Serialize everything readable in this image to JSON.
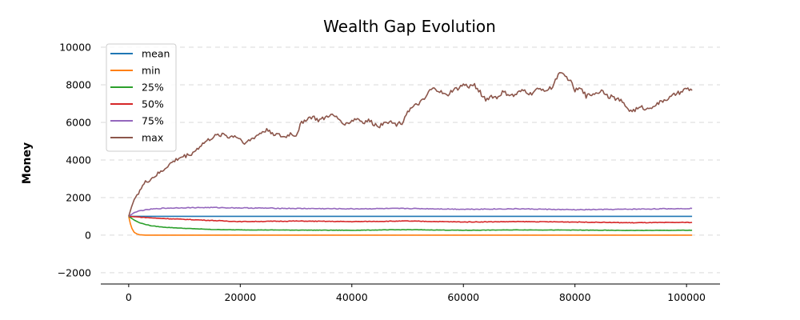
{
  "chart_data": {
    "type": "line",
    "title": "Wealth Gap Evolution",
    "xlabel": "",
    "ylabel": "Money",
    "xlim": [
      -5000,
      106000
    ],
    "ylim": [
      -2600,
      10300
    ],
    "xticks": [
      0,
      20000,
      40000,
      60000,
      80000,
      100000
    ],
    "yticks": [
      -2000,
      0,
      2000,
      4000,
      6000,
      8000,
      10000
    ],
    "grid": "horizontal-dashed",
    "legend_position": "top-left",
    "series": [
      {
        "name": "mean",
        "color": "#1f77b4",
        "x": [
          0,
          101000
        ],
        "y": [
          1000,
          1000
        ]
      },
      {
        "name": "min",
        "color": "#ff7f0e",
        "x": [
          0,
          300,
          600,
          1000,
          1500,
          2000,
          3000,
          101000
        ],
        "y": [
          1000,
          600,
          350,
          150,
          60,
          20,
          0,
          0
        ]
      },
      {
        "name": "25%",
        "color": "#2ca02c",
        "x": [
          0,
          1000,
          2000,
          4000,
          6000,
          10000,
          15000,
          20000,
          30000,
          40000,
          50000,
          60000,
          70000,
          80000,
          90000,
          101000
        ],
        "y": [
          1000,
          800,
          650,
          500,
          430,
          360,
          300,
          280,
          270,
          260,
          290,
          260,
          280,
          270,
          250,
          260
        ]
      },
      {
        "name": "50%",
        "color": "#d62728",
        "x": [
          0,
          2000,
          5000,
          10000,
          15000,
          20000,
          30000,
          40000,
          50000,
          60000,
          70000,
          80000,
          90000,
          101000
        ],
        "y": [
          1000,
          960,
          900,
          840,
          780,
          720,
          750,
          720,
          750,
          700,
          720,
          700,
          660,
          680
        ]
      },
      {
        "name": "75%",
        "color": "#9467bd",
        "x": [
          0,
          1000,
          2000,
          4000,
          6000,
          10000,
          15000,
          20000,
          30000,
          40000,
          50000,
          60000,
          70000,
          80000,
          90000,
          101000
        ],
        "y": [
          1000,
          1200,
          1300,
          1380,
          1430,
          1460,
          1470,
          1450,
          1420,
          1400,
          1420,
          1380,
          1400,
          1350,
          1380,
          1420
        ]
      },
      {
        "name": "max",
        "color": "#8c564b",
        "x": [
          0,
          500,
          1000,
          2000,
          3000,
          4000,
          5000,
          6000,
          7000,
          8000,
          9000,
          10000,
          11000,
          12000,
          13000,
          14000,
          15000,
          16000,
          17000,
          18000,
          19000,
          20000,
          21000,
          22000,
          23000,
          24000,
          25000,
          26000,
          27000,
          28000,
          29000,
          30000,
          31000,
          32000,
          33000,
          34000,
          35000,
          36000,
          37000,
          38000,
          39000,
          40000,
          41000,
          42000,
          43000,
          44000,
          45000,
          46000,
          47000,
          48000,
          49000,
          50000,
          51000,
          52000,
          53000,
          54000,
          55000,
          56000,
          57000,
          58000,
          59000,
          60000,
          61000,
          62000,
          63000,
          64000,
          65000,
          66000,
          67000,
          68000,
          69000,
          70000,
          71000,
          72000,
          73000,
          74000,
          75000,
          76000,
          77000,
          78000,
          79000,
          80000,
          81000,
          82000,
          83000,
          84000,
          85000,
          86000,
          87000,
          88000,
          89000,
          90000,
          91000,
          92000,
          93000,
          94000,
          95000,
          96000,
          97000,
          98000,
          99000,
          100000,
          101000
        ],
        "y": [
          1000,
          1500,
          1900,
          2400,
          2800,
          3000,
          3200,
          3400,
          3700,
          3900,
          4100,
          4200,
          4300,
          4500,
          4800,
          5000,
          5200,
          5300,
          5400,
          5200,
          5300,
          5100,
          4900,
          5100,
          5300,
          5500,
          5600,
          5400,
          5300,
          5200,
          5400,
          5300,
          6000,
          6200,
          6300,
          6100,
          6200,
          6400,
          6300,
          6100,
          5900,
          6100,
          6200,
          6000,
          6100,
          5900,
          5800,
          6100,
          6000,
          5900,
          6000,
          6600,
          6800,
          7000,
          7200,
          7700,
          7800,
          7600,
          7400,
          7700,
          7800,
          8000,
          7900,
          8000,
          7600,
          7200,
          7400,
          7300,
          7600,
          7500,
          7400,
          7600,
          7700,
          7500,
          7700,
          7800,
          7700,
          7900,
          8600,
          8500,
          8300,
          7700,
          7800,
          7400,
          7500,
          7600,
          7700,
          7400,
          7300,
          7200,
          6900,
          6600,
          6700,
          6800,
          6700,
          6900,
          7000,
          7200,
          7300,
          7500,
          7600,
          7800,
          7700
        ]
      }
    ]
  }
}
